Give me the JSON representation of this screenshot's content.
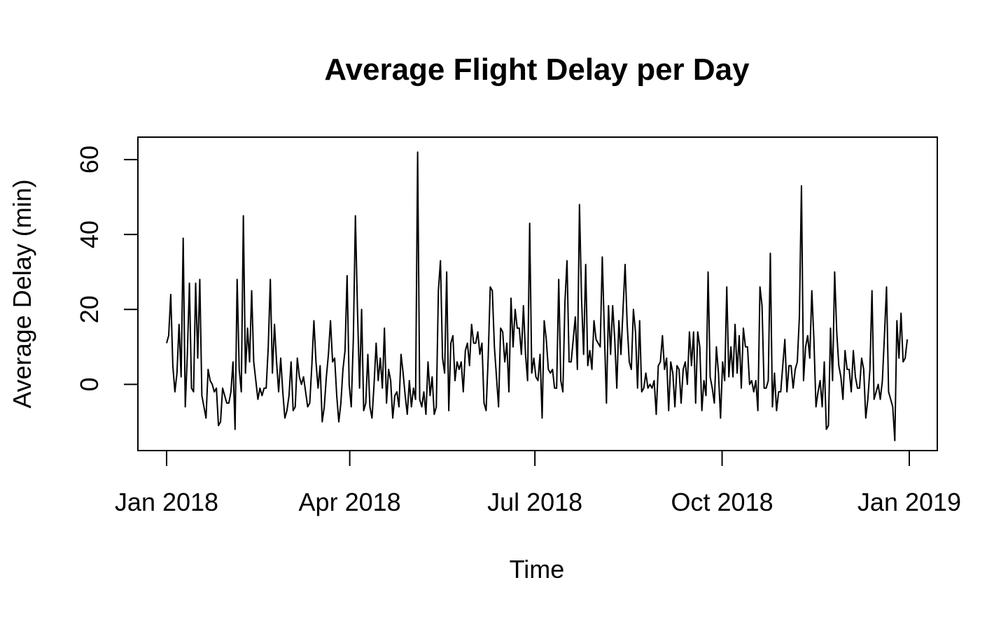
{
  "chart_data": {
    "type": "line",
    "title": "Average Flight Delay per Day",
    "xlabel": "Time",
    "ylabel": "Average Delay (min)",
    "x_start": "2018-01-01",
    "x_end": "2018-12-31",
    "xlim": [
      "2018-01-01",
      "2019-01-01"
    ],
    "ylim": [
      -14.5,
      63
    ],
    "x_ticks": [
      {
        "date": "2018-01-01",
        "label": "Jan 2018"
      },
      {
        "date": "2018-04-01",
        "label": "Apr 2018"
      },
      {
        "date": "2018-07-01",
        "label": "Jul 2018"
      },
      {
        "date": "2018-10-01",
        "label": "Oct 2018"
      },
      {
        "date": "2019-01-01",
        "label": "Jan 2019"
      }
    ],
    "y_ticks": [
      0,
      20,
      40,
      60
    ],
    "grid": false,
    "legend": "none",
    "line_color": "#000000",
    "series": [
      {
        "values": [
          11,
          13,
          24,
          5,
          -2,
          3,
          16,
          2,
          39,
          -6,
          8,
          27,
          -1,
          -2,
          27,
          7,
          28,
          -3,
          -6,
          -9,
          4,
          1,
          0,
          -2,
          -1,
          -11,
          -10,
          -1,
          -3,
          -5,
          -5,
          -2,
          6,
          -12,
          28,
          4,
          -2,
          45,
          3,
          15,
          6,
          25,
          6,
          1,
          -4,
          -1,
          -3,
          -1,
          -1,
          10,
          28,
          3,
          16,
          6,
          -2,
          7,
          -2,
          -9,
          -7,
          -3,
          6,
          -7,
          -6,
          7,
          2,
          0,
          2,
          -2,
          -6,
          -5,
          5,
          17,
          6,
          -1,
          5,
          -10,
          -6,
          2,
          8,
          17,
          6,
          7,
          -3,
          -10,
          -5,
          4,
          9,
          29,
          0,
          -6,
          12,
          45,
          20,
          -1,
          20,
          -7,
          -5,
          8,
          -6,
          -9,
          0,
          11,
          1,
          7,
          -1,
          15,
          -5,
          4,
          1,
          -9,
          -3,
          -2,
          -6,
          8,
          3,
          -3,
          -8,
          1,
          -6,
          -1,
          -4,
          62,
          -4,
          -6,
          -2,
          -8,
          6,
          -3,
          2,
          -8,
          -6,
          25,
          33,
          7,
          3,
          30,
          -7,
          11,
          13,
          1,
          6,
          4,
          6,
          -2,
          9,
          11,
          5,
          16,
          11,
          11,
          14,
          8,
          11,
          -5,
          -7,
          7,
          26,
          25,
          10,
          2,
          -6,
          15,
          14,
          6,
          11,
          -2,
          23,
          10,
          20,
          15,
          15,
          8,
          21,
          8,
          1,
          43,
          3,
          7,
          2,
          1,
          8,
          -9,
          17,
          12,
          4,
          3,
          4,
          -1,
          -1,
          28,
          1,
          -2,
          22,
          33,
          6,
          6,
          12,
          18,
          4,
          48,
          23,
          8,
          32,
          5,
          9,
          4,
          17,
          12,
          11,
          10,
          34,
          14,
          -5,
          21,
          8,
          21,
          12,
          -1,
          17,
          8,
          20,
          32,
          16,
          6,
          4,
          20,
          14,
          -1,
          17,
          -2,
          -1,
          3,
          -1,
          0,
          -1,
          1,
          -8,
          5,
          6,
          13,
          4,
          7,
          -7,
          6,
          3,
          -6,
          5,
          4,
          -5,
          4,
          6,
          0,
          14,
          5,
          14,
          -5,
          14,
          10,
          -7,
          1,
          -3,
          30,
          2,
          -1,
          -5,
          10,
          3,
          -9,
          6,
          1,
          26,
          2,
          10,
          2,
          16,
          3,
          13,
          -1,
          15,
          10,
          10,
          0,
          1,
          -2,
          1,
          -7,
          26,
          21,
          -1,
          -1,
          1,
          35,
          -6,
          3,
          -7,
          -2,
          -2,
          5,
          12,
          -2,
          5,
          5,
          -1,
          4,
          6,
          18,
          53,
          1,
          10,
          13,
          7,
          25,
          12,
          -6,
          -2,
          1,
          -6,
          6,
          -12,
          -11,
          15,
          1,
          30,
          14,
          5,
          2,
          -4,
          9,
          4,
          4,
          -2,
          9,
          2,
          -1,
          -1,
          7,
          4,
          -9,
          -4,
          4,
          25,
          -4,
          -2,
          0,
          -4,
          1,
          13,
          26,
          -2,
          -4,
          -6,
          -15,
          17,
          7,
          19,
          6,
          7,
          12
        ]
      }
    ]
  }
}
